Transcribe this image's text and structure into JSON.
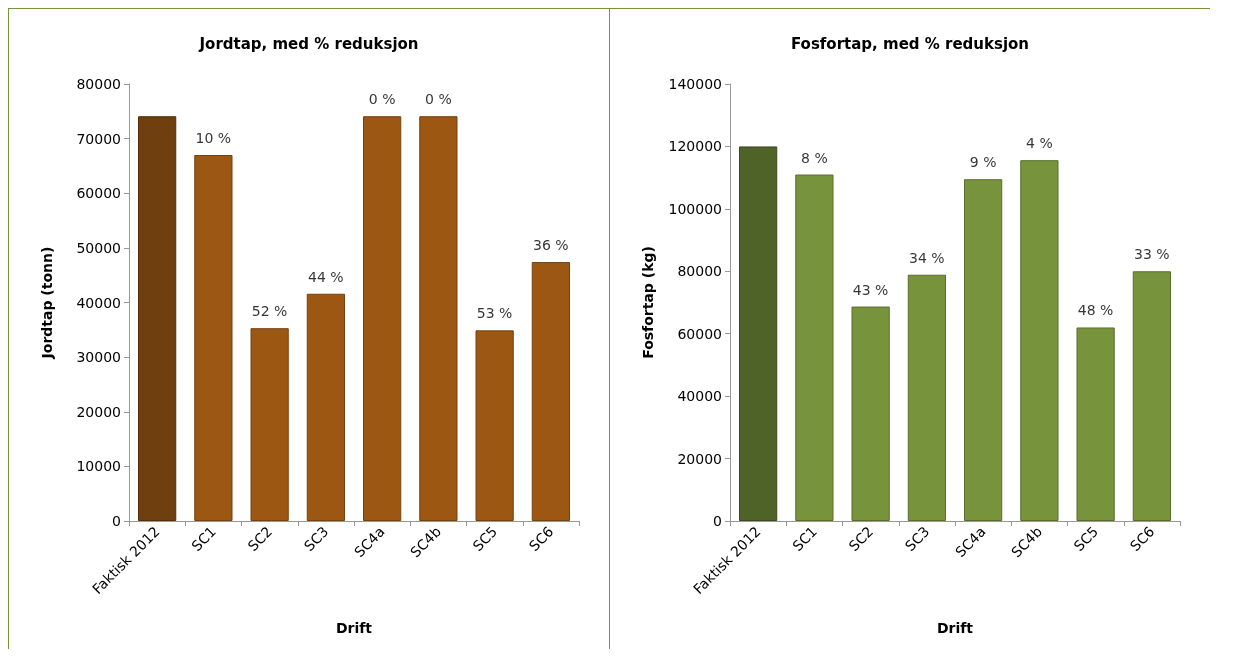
{
  "chart_data": [
    {
      "type": "bar",
      "title": "Jordtap, med % reduksjon",
      "xlabel": "Drift",
      "ylabel": "Jordtap (tonn)",
      "categories": [
        "Faktisk 2012",
        "SC1",
        "SC2",
        "SC3",
        "SC4a",
        "SC4b",
        "SC5",
        "SC6"
      ],
      "values": [
        74100,
        67000,
        35300,
        41600,
        74100,
        74100,
        34900,
        47400
      ],
      "colors": [
        "#6f3f0f",
        "#9c5713",
        "#9c5713",
        "#9c5713",
        "#9c5713",
        "#9c5713",
        "#9c5713",
        "#9c5713"
      ],
      "annotations": [
        {
          "text": "10 %",
          "x": "SC1",
          "y": 67000
        },
        {
          "text": "52 %",
          "x": "SC2",
          "y": 35300
        },
        {
          "text": "44 %",
          "x": "SC3",
          "y": 41600
        },
        {
          "text": "0 %",
          "x": "SC4a",
          "y": 74100
        },
        {
          "text": "0 %",
          "x": "SC4b",
          "y": 74100
        },
        {
          "text": "53 %",
          "x": "SC5",
          "y": 34900
        },
        {
          "text": "36 %",
          "x": "SC6",
          "y": 47400
        }
      ],
      "ylim": [
        0,
        80000
      ],
      "yticks": [
        0,
        10000,
        20000,
        30000,
        40000,
        50000,
        60000,
        70000,
        80000
      ]
    },
    {
      "type": "bar",
      "title": "Fosfortap, med % reduksjon",
      "xlabel": "Drift",
      "ylabel": "Fosfortap (kg)",
      "categories": [
        "Faktisk 2012",
        "SC1",
        "SC2",
        "SC3",
        "SC4a",
        "SC4b",
        "SC5",
        "SC6"
      ],
      "values": [
        120000,
        111000,
        68700,
        78900,
        109500,
        115600,
        62000,
        80000
      ],
      "colors": [
        "#4f6228",
        "#77933c",
        "#77933c",
        "#77933c",
        "#77933c",
        "#77933c",
        "#77933c",
        "#77933c"
      ],
      "annotations": [
        {
          "text": "8 %",
          "x": "SC1",
          "y": 111000
        },
        {
          "text": "43 %",
          "x": "SC2",
          "y": 68700
        },
        {
          "text": "34 %",
          "x": "SC3",
          "y": 78900
        },
        {
          "text": "9 %",
          "x": "SC4a",
          "y": 109500
        },
        {
          "text": "4 %",
          "x": "SC4b",
          "y": 115600
        },
        {
          "text": "48 %",
          "x": "SC5",
          "y": 62000
        },
        {
          "text": "33 %",
          "x": "SC6",
          "y": 80000
        }
      ],
      "ylim": [
        0,
        140000
      ],
      "yticks": [
        0,
        20000,
        40000,
        60000,
        80000,
        100000,
        120000,
        140000
      ]
    }
  ]
}
